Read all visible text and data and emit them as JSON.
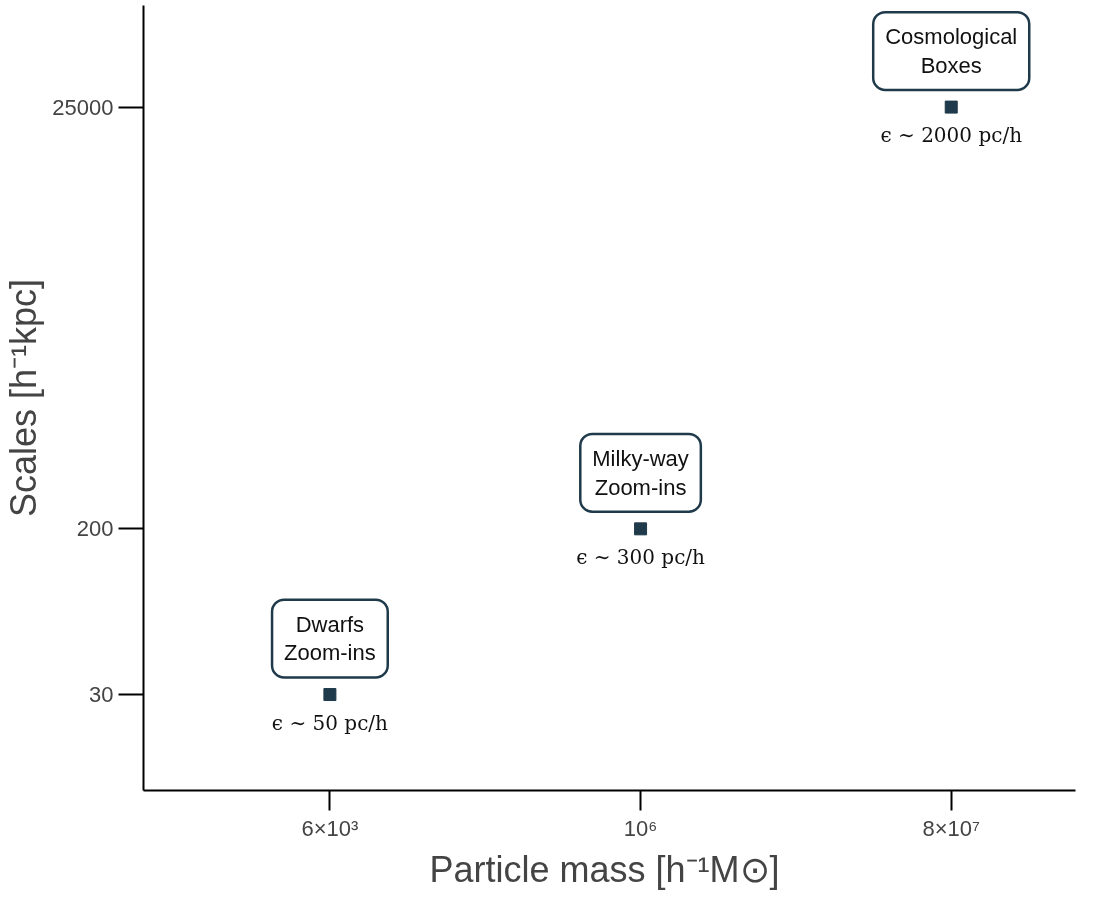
{
  "chart_data": {
    "type": "scatter",
    "xlabel": "Particle mass  [h⁻¹M⊙]",
    "ylabel": "Scales [h⁻¹kpc]",
    "categories": [
      "6×10³",
      "10⁶",
      "8×10⁷"
    ],
    "series": [
      {
        "name": "Dwarfs\nZoom-ins",
        "color": "#1f3a4a",
        "values": [
          30,
          null,
          null
        ]
      },
      {
        "name": "Milky-way\nZoom-ins",
        "color": "#1f3a4a",
        "values": [
          null,
          200,
          null
        ]
      },
      {
        "name": "Cosmological\nBoxes",
        "color": "#1f3a4a",
        "values": [
          null,
          null,
          25000
        ]
      }
    ],
    "marker": "square",
    "grid": false,
    "legend": false,
    "log": "y",
    "ylim": [
      10,
      80000
    ],
    "yticks": [
      30,
      200,
      25000
    ],
    "annotations": [
      "ϵ ∼ 50 pc/h",
      "ϵ ∼ 300 pc/h",
      "ϵ ∼ 2000 pc/h"
    ]
  }
}
